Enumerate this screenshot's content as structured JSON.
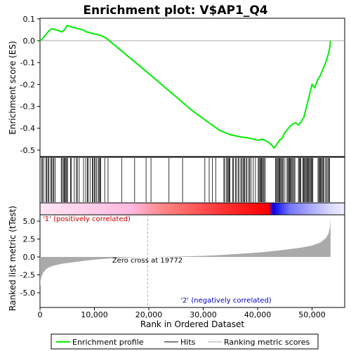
{
  "chart_data": {
    "type": "line",
    "title": "Enrichment plot: V$AP1_Q4",
    "colors": {
      "es_line": "#00ee00",
      "hits": "#000000",
      "metric_fill": "#aaaaaa",
      "pos_band": "#ff0000",
      "neg_band": "#0000ff",
      "zero_line": "#aaaaaa"
    },
    "top_panel": {
      "ylabel": "Enrichment score (ES)",
      "ylim": [
        -0.53,
        0.1
      ],
      "yticks": [
        0.1,
        0.0,
        -0.1,
        -0.2,
        -0.3,
        -0.4,
        -0.5
      ],
      "ytick_labels": [
        "0.1",
        "0.0",
        "-0.1",
        "-0.2",
        "-0.3",
        "-0.4",
        "-0.5"
      ],
      "grid": false,
      "es_curve": {
        "x": [
          0,
          300,
          800,
          1300,
          1800,
          2300,
          2900,
          3500,
          4000,
          4500,
          5000,
          5500,
          6200,
          7000,
          7800,
          8600,
          9400,
          10200,
          11000,
          12000,
          20000,
          28000,
          33000,
          35000,
          37000,
          38500,
          40000,
          40800,
          41300,
          42000,
          42500,
          43000,
          43500,
          44000,
          44500,
          45000,
          45500,
          46000,
          46500,
          47000,
          47500,
          48000,
          48500,
          49000,
          49500,
          50000,
          50500,
          51000,
          51500,
          52000,
          52500,
          53000,
          53200,
          53400
        ],
        "y": [
          0.0,
          0.005,
          0.02,
          0.035,
          0.05,
          0.055,
          0.05,
          0.045,
          0.04,
          0.05,
          0.07,
          0.065,
          0.06,
          0.055,
          0.05,
          0.04,
          0.035,
          0.03,
          0.025,
          0.015,
          -0.15,
          -0.32,
          -0.41,
          -0.43,
          -0.44,
          -0.445,
          -0.455,
          -0.45,
          -0.455,
          -0.465,
          -0.475,
          -0.49,
          -0.475,
          -0.455,
          -0.445,
          -0.42,
          -0.405,
          -0.39,
          -0.38,
          -0.375,
          -0.385,
          -0.37,
          -0.35,
          -0.3,
          -0.25,
          -0.2,
          -0.215,
          -0.18,
          -0.16,
          -0.13,
          -0.1,
          -0.06,
          -0.04,
          0.0
        ]
      }
    },
    "hits_panel": {
      "hit_clusters": [
        [
          300,
          500
        ],
        [
          700,
          800
        ],
        [
          1100,
          1300
        ],
        [
          1500,
          1700
        ],
        [
          2000,
          2200
        ],
        [
          2400,
          2600
        ],
        [
          2800,
          2900
        ],
        [
          3900,
          4100
        ],
        [
          4300,
          4500
        ],
        [
          4600,
          4800
        ],
        [
          4900,
          5100
        ],
        [
          5600,
          5800
        ],
        [
          6300,
          6400
        ],
        [
          6700,
          6900
        ],
        [
          7200,
          7300
        ],
        [
          8000,
          8100
        ],
        [
          8400,
          8500
        ],
        [
          8700,
          9000
        ],
        [
          9200,
          9300
        ],
        [
          9600,
          9800
        ],
        [
          10000,
          10200
        ],
        [
          10400,
          10500
        ],
        [
          10700,
          11300
        ],
        [
          11900,
          12000
        ],
        [
          12500,
          12600
        ],
        [
          15000,
          15100
        ],
        [
          17400,
          17500
        ],
        [
          19500,
          19600
        ],
        [
          20400,
          20500
        ],
        [
          23700,
          23800
        ],
        [
          26200,
          26300
        ],
        [
          30300,
          30400
        ],
        [
          31100,
          31200
        ],
        [
          31700,
          31800
        ],
        [
          32300,
          32400
        ],
        [
          33800,
          34000
        ],
        [
          34300,
          35000
        ],
        [
          35400,
          35700
        ],
        [
          35900,
          36200
        ],
        [
          36400,
          36700
        ],
        [
          36900,
          37100
        ],
        [
          37300,
          37700
        ],
        [
          37900,
          38100
        ],
        [
          38400,
          38600
        ],
        [
          38800,
          38900
        ],
        [
          39200,
          39300
        ],
        [
          39600,
          39700
        ],
        [
          40100,
          41200
        ],
        [
          41400,
          41500
        ],
        [
          43300,
          44800
        ],
        [
          45000,
          45100
        ],
        [
          45400,
          46500
        ],
        [
          46700,
          47000
        ],
        [
          47500,
          48000
        ],
        [
          48300,
          50200
        ],
        [
          51100,
          52200
        ],
        [
          52500,
          52700
        ],
        [
          52900,
          53300
        ]
      ]
    },
    "rank_band": {
      "label_pos": "'1' (positively correlated)"
    },
    "bottom_panel": {
      "ylabel": "Ranked list metric (tTest)",
      "xlabel": "Rank in Ordered Dataset",
      "ylim": [
        -7,
        7
      ],
      "yticks": [
        5.0,
        2.5,
        0.0,
        -2.5,
        -5.0
      ],
      "ytick_labels": [
        "5.0",
        "2.5",
        "0.0",
        "-2.5",
        "-5.0"
      ],
      "xlim": [
        0,
        56000
      ],
      "xticks": [
        0,
        10000,
        20000,
        30000,
        40000,
        50000
      ],
      "xtick_labels": [
        "0",
        "10,000",
        "20,000",
        "30,000",
        "40,000",
        "50,000"
      ],
      "zero_cross": 19772,
      "zero_cross_label": "Zero cross at 19772",
      "neg_label": "'2' (negatively correlated)",
      "metric_curve": {
        "x": [
          0,
          100,
          300,
          600,
          1000,
          1500,
          2500,
          4000,
          6000,
          8000,
          10000,
          12000,
          14000,
          16000,
          18000,
          19772,
          22000,
          26000,
          30000,
          33000,
          36000,
          39000,
          42000,
          45000,
          48000,
          50000,
          51500,
          52500,
          53000,
          53300,
          53400
        ],
        "y": [
          -4.2,
          -3.3,
          -2.7,
          -2.2,
          -1.8,
          -1.5,
          -1.2,
          -0.95,
          -0.75,
          -0.55,
          -0.38,
          -0.25,
          -0.15,
          -0.08,
          -0.03,
          0.0,
          0.03,
          0.08,
          0.15,
          0.25,
          0.4,
          0.55,
          0.75,
          1.0,
          1.3,
          1.6,
          2.0,
          2.6,
          3.2,
          4.2,
          5.3
        ]
      }
    },
    "legend": {
      "position": "bottom",
      "items": [
        {
          "label": "Enrichment profile",
          "kind": "line",
          "color": "#00ee00"
        },
        {
          "label": "Hits",
          "kind": "line",
          "color": "#000000"
        },
        {
          "label": "Ranking metric scores",
          "kind": "line",
          "color": "#aaaaaa"
        }
      ]
    }
  }
}
